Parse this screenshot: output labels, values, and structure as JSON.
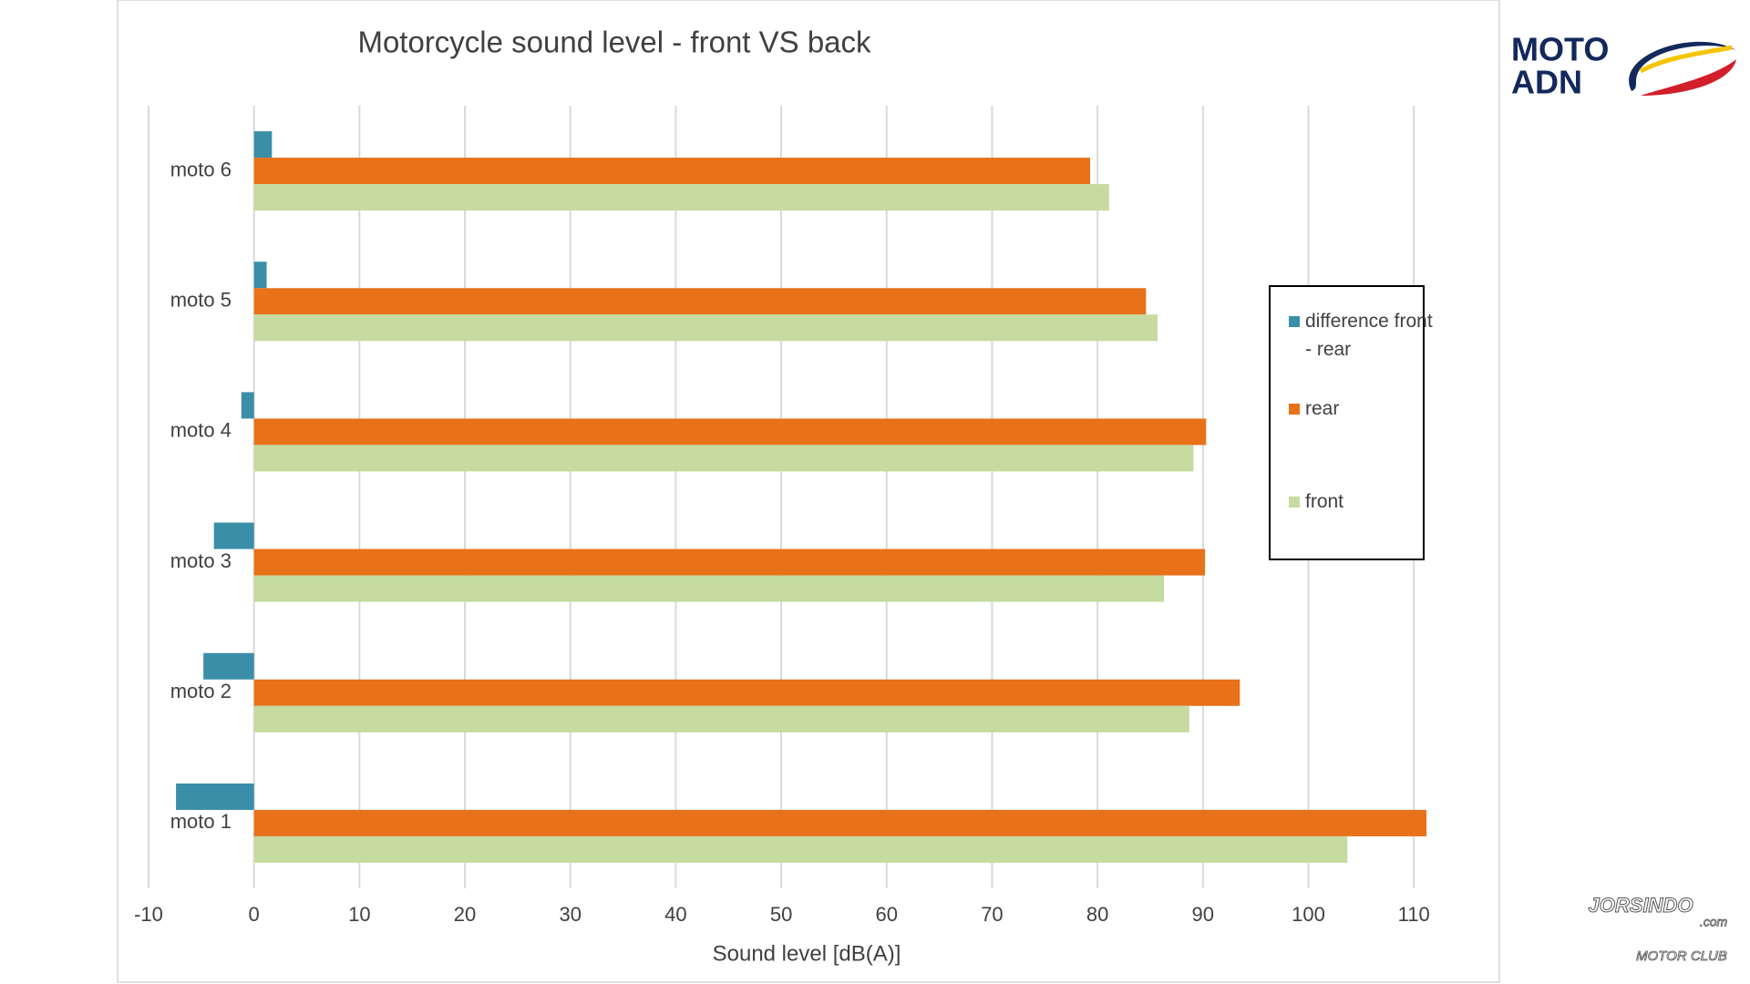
{
  "chart_data": {
    "type": "hbar",
    "title": "Motorcycle sound level - front VS back",
    "xlabel": "Sound level  [dB(A)]",
    "categories": [
      "moto 1",
      "moto 2",
      "moto 3",
      "moto 4",
      "moto 5",
      "moto 6"
    ],
    "series": [
      {
        "name": "difference front - rear",
        "color": "#3a8ea8",
        "values": [
          -7.4,
          -4.8,
          -3.8,
          -1.2,
          1.2,
          1.7
        ]
      },
      {
        "name": "rear",
        "color": "#e8711a",
        "values": [
          111.2,
          93.5,
          90.2,
          90.3,
          84.6,
          79.3
        ]
      },
      {
        "name": "front",
        "color": "#c5dba0",
        "values": [
          103.7,
          88.7,
          86.3,
          89.1,
          85.7,
          81.1
        ]
      }
    ],
    "xlim": [
      -10,
      115
    ],
    "xticks": [
      -10,
      0,
      10,
      20,
      30,
      40,
      50,
      60,
      70,
      80,
      90,
      100,
      110
    ],
    "grid": true
  },
  "logo": {
    "line1": "MOTO",
    "line2": "ADN"
  },
  "watermark": {
    "name": "JORSINDO",
    "domain": ".com",
    "club": "MOTOR CLUB"
  }
}
